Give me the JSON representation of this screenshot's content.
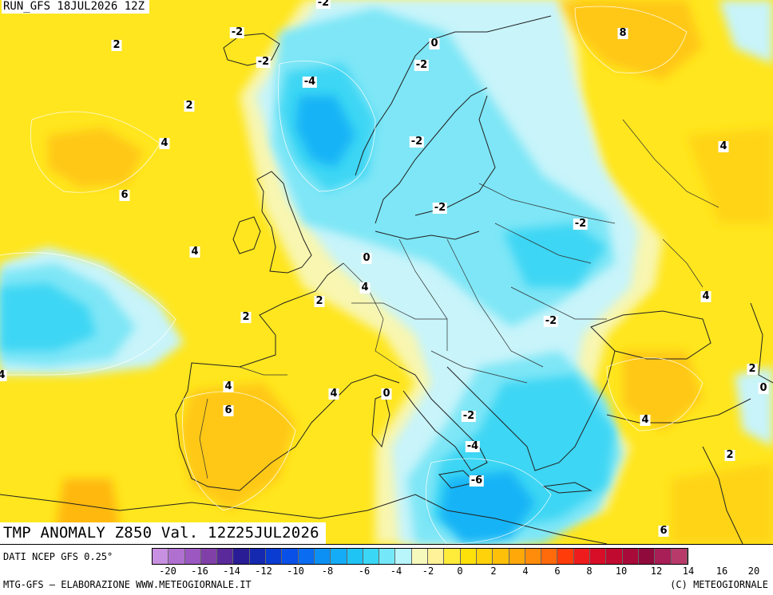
{
  "header": {
    "run": "RUN_GFS 18JUL2026 12Z"
  },
  "title": "TMP ANOMALY Z850 Val. 12Z25JUL2026",
  "footer": {
    "data_source": "DATI NCEP GFS 0.25°",
    "credit_left": "MTG-GFS – ELABORAZIONE WWW.METEOGIORNALE.IT",
    "credit_right": "(C) METEOGIORNALE"
  },
  "colorbar": {
    "colors": [
      "#c890e0",
      "#b070d0",
      "#9a58c0",
      "#8040a8",
      "#5a2a9a",
      "#2a1c94",
      "#1428b0",
      "#0a3cd2",
      "#0850e8",
      "#0a6cf0",
      "#0c90f4",
      "#14acf6",
      "#20c4f4",
      "#3ad8f6",
      "#74e8f8",
      "#b8f6fc",
      "#f6f9bc",
      "#fff298",
      "#ffeb3a",
      "#ffe10a",
      "#ffd20a",
      "#ffc00a",
      "#ffa80a",
      "#ff8c0a",
      "#ff6a0a",
      "#ff3c0a",
      "#ee1c1c",
      "#d80e28",
      "#c00a30",
      "#a80a3a",
      "#900a3c",
      "#a81e56",
      "#b83a6a"
    ],
    "ticks": [
      "-20",
      "-16",
      "-14",
      "-12",
      "-10",
      "-8",
      "-6",
      "-4",
      "-2",
      "0",
      "2",
      "4",
      "6",
      "8",
      "10",
      "12",
      "14",
      "16",
      "20"
    ]
  },
  "contour_labels": [
    {
      "text": "-2"
    },
    {
      "text": "-2"
    },
    {
      "text": "-2"
    },
    {
      "text": "-4"
    },
    {
      "text": "0"
    },
    {
      "text": "-2"
    },
    {
      "text": "8"
    },
    {
      "text": "2"
    },
    {
      "text": "2"
    },
    {
      "text": "4"
    },
    {
      "text": "6"
    },
    {
      "text": "4"
    },
    {
      "text": "-2"
    },
    {
      "text": "-2"
    },
    {
      "text": "4"
    },
    {
      "text": "0"
    },
    {
      "text": "4"
    },
    {
      "text": "-2"
    },
    {
      "text": "2"
    },
    {
      "text": "2"
    },
    {
      "text": "-2"
    },
    {
      "text": "4"
    },
    {
      "text": "4"
    },
    {
      "text": "6"
    },
    {
      "text": "4"
    },
    {
      "text": "0"
    },
    {
      "text": "-2"
    },
    {
      "text": "-4"
    },
    {
      "text": "-6"
    },
    {
      "text": "4"
    },
    {
      "text": "2"
    },
    {
      "text": "0"
    },
    {
      "text": "2"
    },
    {
      "text": "6"
    },
    {
      "text": "4"
    }
  ]
}
